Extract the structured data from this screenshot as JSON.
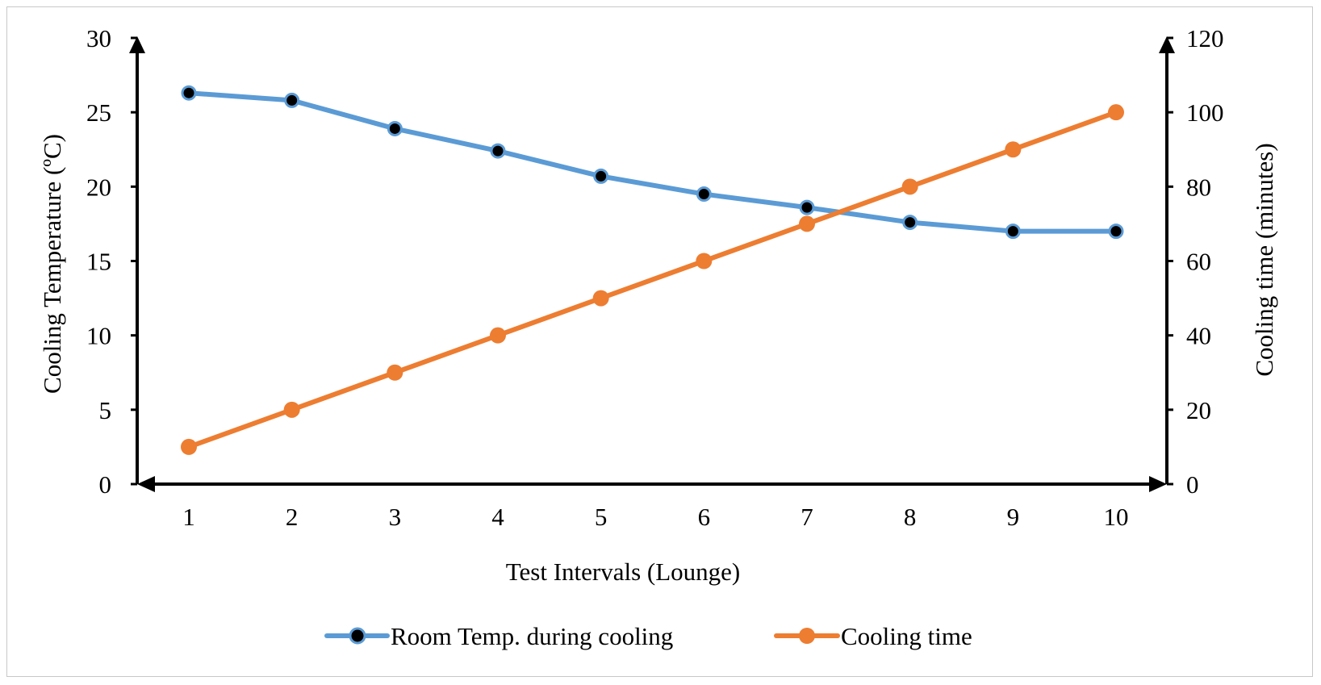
{
  "chart_data": {
    "type": "line",
    "title": "",
    "categories": [
      "1",
      "2",
      "3",
      "4",
      "5",
      "6",
      "7",
      "8",
      "9",
      "10"
    ],
    "xlabel": "Test Intervals (Lounge)",
    "ylabel": "Cooling Temperature  (ºC)",
    "y2label": "Cooling time (minutes)",
    "ylim": [
      0,
      30
    ],
    "y2lim": [
      0,
      120
    ],
    "yticks": [
      "0",
      "5",
      "10",
      "15",
      "20",
      "25",
      "30"
    ],
    "y2ticks": [
      "0",
      "20",
      "40",
      "60",
      "80",
      "100",
      "120"
    ],
    "grid": false,
    "legend_position": "bottom",
    "series": [
      {
        "name": "Room Temp. during cooling",
        "axis": "left",
        "color": "#5b9bd5",
        "marker_color": "#000000",
        "values": [
          26.3,
          25.8,
          23.9,
          22.4,
          20.7,
          19.5,
          18.6,
          17.6,
          17.0,
          17.0
        ]
      },
      {
        "name": "Cooling time",
        "axis": "right",
        "color": "#ed7d31",
        "marker_color": "#ed7d31",
        "values": [
          10,
          20,
          30,
          40,
          50,
          60,
          70,
          80,
          90,
          100
        ]
      }
    ]
  }
}
